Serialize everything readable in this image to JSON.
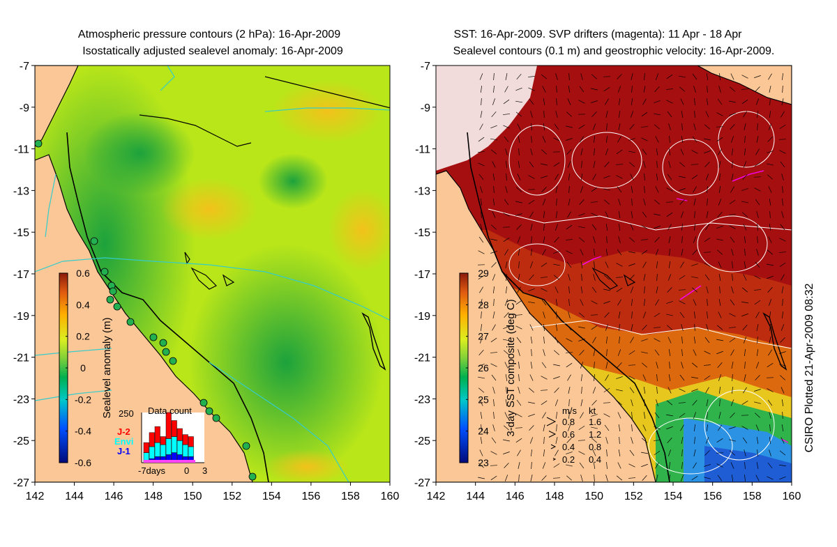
{
  "left_panel": {
    "title_line1": "Atmospheric pressure contours (2 hPa): 16-Apr-2009",
    "title_line2": "Isostatically adjusted sealevel anomaly: 16-Apr-2009",
    "colorbar_label": "Sealevel anomaly (m)",
    "colorbar_ticks": [
      "0.6",
      "0.4",
      "0.2",
      "0",
      "-0.2",
      "-0.4",
      "-0.6"
    ],
    "inset": {
      "title": "Data count",
      "ymax_label": "250",
      "legend": [
        {
          "name": "J-2",
          "color": "#ff0000"
        },
        {
          "name": "Envi",
          "color": "#00ffff"
        },
        {
          "name": "J-1",
          "color": "#0000ff"
        }
      ],
      "xlabels": [
        "-7days",
        "0",
        "3"
      ]
    }
  },
  "right_panel": {
    "title_line1": "SST: 16-Apr-2009. SVP drifters (magenta): 11 Apr - 18 Apr",
    "title_line2": "Sealevel contours (0.1 m) and geostrophic velocity: 16-Apr-2009.",
    "colorbar_label": "3-day SST composite (deg C)",
    "colorbar_ticks": [
      "29",
      "28",
      "27",
      "26",
      "25",
      "24",
      "23"
    ],
    "velocity_legend": {
      "units": [
        "m/s",
        "kt"
      ],
      "rows": [
        [
          "0.8",
          "1.6"
        ],
        [
          "0.6",
          "1.2"
        ],
        [
          "0.4",
          "0.8"
        ],
        [
          "0.2",
          "0.4"
        ]
      ]
    }
  },
  "side_caption": "CSIRO Plotted 21-Apr-2009 08:32",
  "colors": {
    "land": "#fbc797",
    "sst_warm": "#a50f0f",
    "coast": "#000000",
    "contour_cyan": "#33cccc",
    "contour_white": "#ffffff"
  },
  "chart_data": [
    {
      "type": "heatmap",
      "title": "Atmospheric pressure contours (2 hPa): 16-Apr-2009 / Isostatically adjusted sealevel anomaly: 16-Apr-2009",
      "xlabel": "",
      "ylabel": "",
      "xlim": [
        142,
        160
      ],
      "ylim": [
        -27,
        -7
      ],
      "x_ticks": [
        142,
        144,
        146,
        148,
        150,
        152,
        154,
        156,
        158,
        160
      ],
      "y_ticks": [
        -7,
        -9,
        -11,
        -13,
        -15,
        -17,
        -19,
        -21,
        -23,
        -25,
        -27
      ],
      "colorbar": {
        "label": "Sealevel anomaly (m)",
        "min": -0.6,
        "max": 0.6
      },
      "grid": false
    },
    {
      "type": "bar",
      "title": "Data count",
      "series": [
        {
          "name": "J-1",
          "values": [
            10,
            20,
            30,
            30,
            40,
            50,
            40,
            30,
            30
          ]
        },
        {
          "name": "Envi",
          "values": [
            40,
            60,
            70,
            60,
            80,
            80,
            70,
            60,
            50
          ]
        },
        {
          "name": "J-2",
          "values": [
            50,
            70,
            80,
            40,
            130,
            80,
            60,
            50,
            50
          ]
        }
      ],
      "ylim": [
        0,
        250
      ],
      "xlabels": [
        "-7days",
        "0",
        "3"
      ]
    },
    {
      "type": "heatmap",
      "title": "SST: 16-Apr-2009. SVP drifters (magenta): 11 Apr - 18 Apr / Sealevel contours (0.1 m) and geostrophic velocity: 16-Apr-2009.",
      "xlabel": "",
      "ylabel": "",
      "xlim": [
        142,
        160
      ],
      "ylim": [
        -27,
        -7
      ],
      "x_ticks": [
        142,
        144,
        146,
        148,
        150,
        152,
        154,
        156,
        158,
        160
      ],
      "y_ticks": [
        -7,
        -9,
        -11,
        -13,
        -15,
        -17,
        -19,
        -21,
        -23,
        -25,
        -27
      ],
      "colorbar": {
        "label": "3-day SST composite (deg C)",
        "min": 23,
        "max": 29
      },
      "grid": false
    }
  ]
}
